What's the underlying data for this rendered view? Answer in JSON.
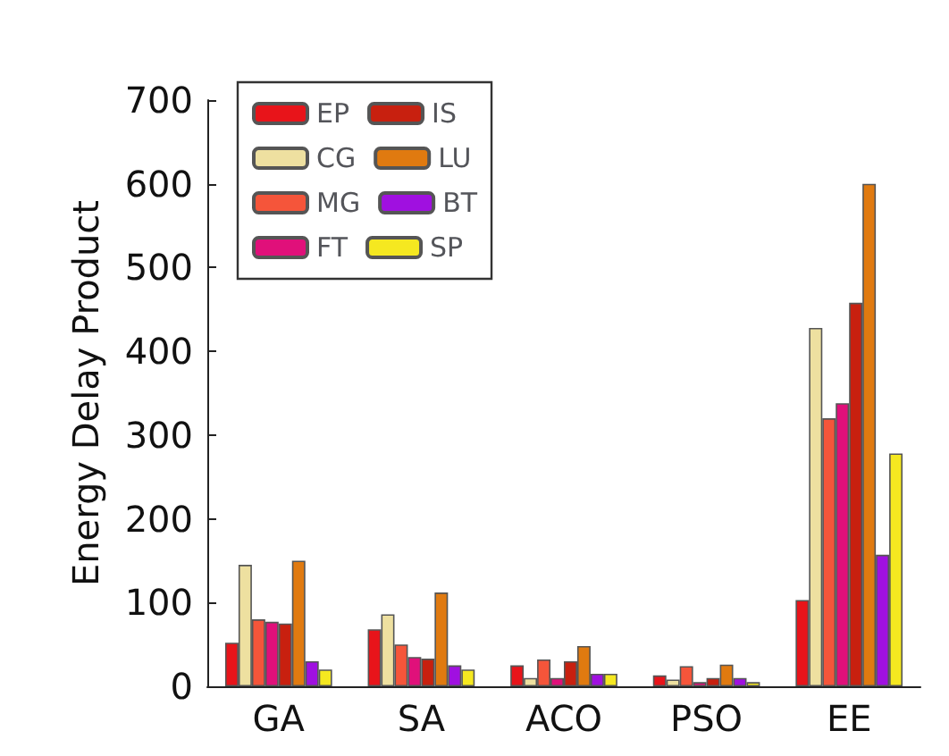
{
  "chart_data": {
    "type": "bar",
    "ylabel": "Energy Delay Product",
    "categories": [
      "GA",
      "SA",
      "ACO",
      "PSO",
      "EE"
    ],
    "ylim": [
      0,
      700
    ],
    "yticks": [
      0,
      100,
      200,
      300,
      400,
      500,
      600,
      700
    ],
    "grid": false,
    "legend": "top left",
    "series": [
      {
        "name": "EP",
        "color": "#e8141a",
        "values": [
          52,
          68,
          25,
          13,
          103
        ]
      },
      {
        "name": "CG",
        "color": "#eee0a0",
        "values": [
          145,
          86,
          10,
          8,
          428
        ]
      },
      {
        "name": "MG",
        "color": "#f5553a",
        "values": [
          80,
          50,
          32,
          24,
          320
        ]
      },
      {
        "name": "FT",
        "color": "#e0107a",
        "values": [
          77,
          35,
          10,
          5,
          338
        ]
      },
      {
        "name": "IS",
        "color": "#c8200f",
        "values": [
          75,
          33,
          30,
          10,
          458
        ]
      },
      {
        "name": "LU",
        "color": "#e07a10",
        "values": [
          150,
          112,
          48,
          26,
          600
        ]
      },
      {
        "name": "BT",
        "color": "#a010e0",
        "values": [
          30,
          25,
          15,
          10,
          157
        ]
      },
      {
        "name": "SP",
        "color": "#f5e820",
        "values": [
          20,
          20,
          15,
          5,
          278
        ]
      }
    ]
  }
}
